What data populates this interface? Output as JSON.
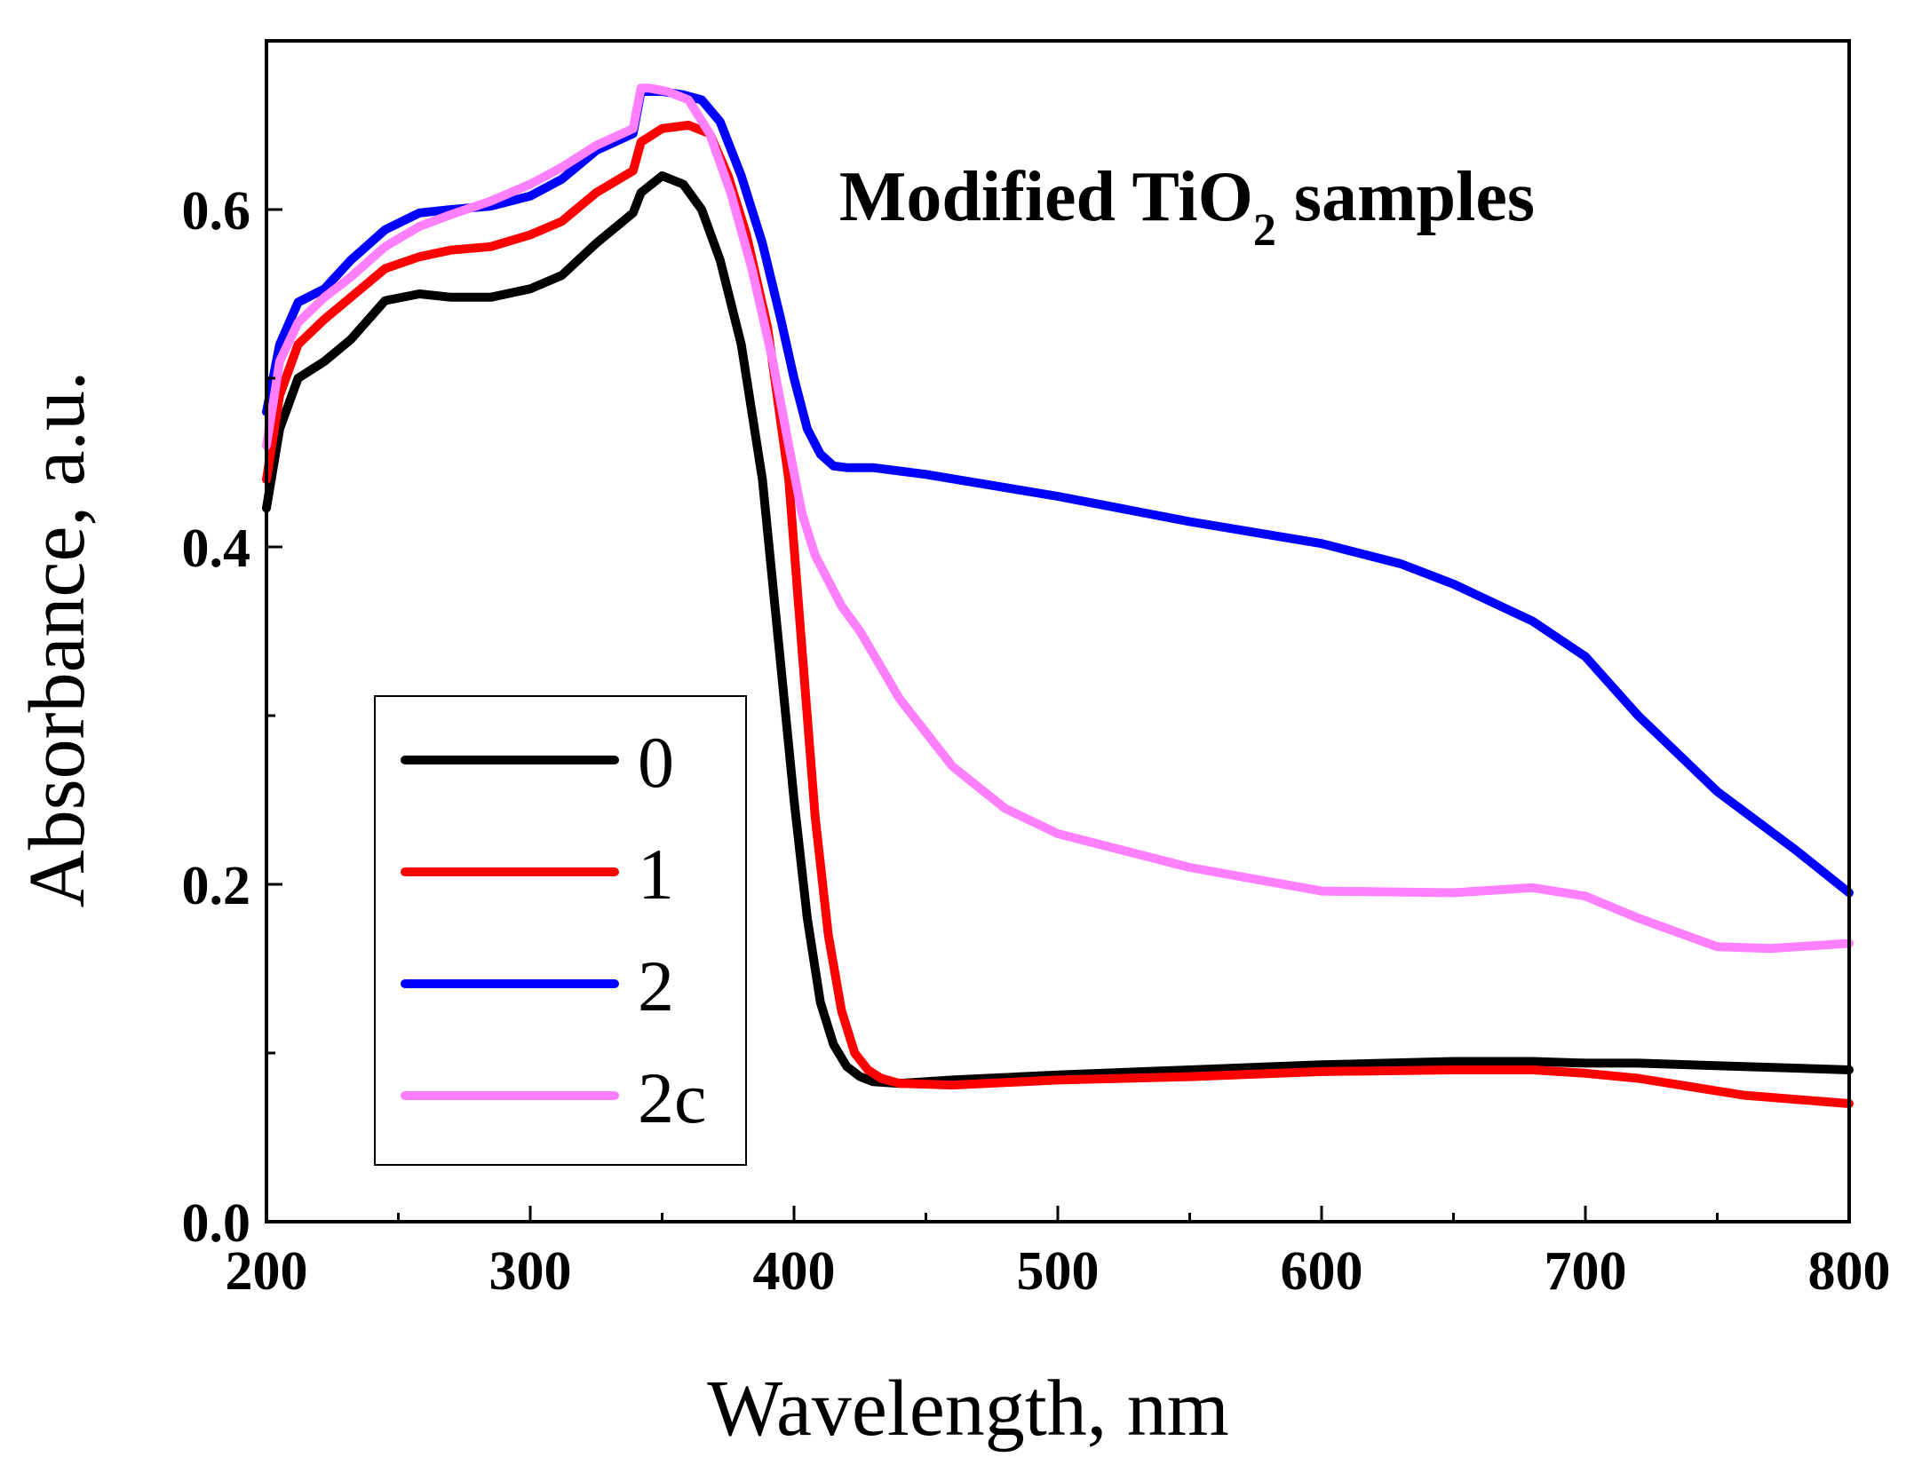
{
  "chart_data": {
    "type": "line",
    "title": "",
    "annotation": {
      "main": "Modified TiO",
      "sub": "2",
      "tail": " samples"
    },
    "xlabel": "Wavelength, nm",
    "ylabel": "Absorbance, a.u.",
    "xlim": [
      200,
      800
    ],
    "ylim": [
      0,
      0.7
    ],
    "xticks": [
      200,
      300,
      400,
      500,
      600,
      700,
      800
    ],
    "xtick_labels": [
      "200",
      "300",
      "400",
      "500",
      "600",
      "700",
      "800"
    ],
    "yticks": [
      0.0,
      0.2,
      0.4,
      0.6
    ],
    "ytick_labels": [
      "0.0",
      "0.2",
      "0.4",
      "0.6"
    ],
    "grid": false,
    "legend_position": "bottom-left",
    "series": [
      {
        "name": "0",
        "color": "#000000",
        "x": [
          200,
          205,
          212,
          222,
          232,
          245,
          258,
          270,
          285,
          300,
          312,
          325,
          339,
          342,
          350,
          358,
          365,
          372,
          380,
          388,
          395,
          400,
          405,
          410,
          415,
          420,
          425,
          430,
          440,
          460,
          500,
          550,
          600,
          650,
          680,
          700,
          720,
          760,
          800
        ],
        "y": [
          0.423,
          0.47,
          0.5,
          0.51,
          0.523,
          0.546,
          0.55,
          0.548,
          0.548,
          0.553,
          0.561,
          0.58,
          0.598,
          0.61,
          0.62,
          0.615,
          0.6,
          0.57,
          0.52,
          0.44,
          0.33,
          0.25,
          0.18,
          0.13,
          0.105,
          0.092,
          0.086,
          0.083,
          0.082,
          0.084,
          0.087,
          0.09,
          0.093,
          0.095,
          0.095,
          0.094,
          0.094,
          0.092,
          0.09
        ]
      },
      {
        "name": "1",
        "color": "#ff0000",
        "x": [
          200,
          205,
          212,
          222,
          232,
          245,
          258,
          270,
          285,
          300,
          312,
          325,
          339,
          342,
          350,
          360,
          368,
          375,
          382,
          390,
          398,
          403,
          408,
          413,
          418,
          423,
          428,
          433,
          440,
          460,
          500,
          550,
          600,
          650,
          680,
          700,
          720,
          760,
          800
        ],
        "y": [
          0.44,
          0.49,
          0.52,
          0.535,
          0.548,
          0.565,
          0.572,
          0.576,
          0.578,
          0.585,
          0.593,
          0.61,
          0.623,
          0.64,
          0.648,
          0.65,
          0.645,
          0.62,
          0.585,
          0.53,
          0.44,
          0.34,
          0.24,
          0.17,
          0.125,
          0.1,
          0.09,
          0.085,
          0.082,
          0.081,
          0.084,
          0.086,
          0.089,
          0.09,
          0.09,
          0.088,
          0.085,
          0.075,
          0.07
        ]
      },
      {
        "name": "2",
        "color": "#0000ff",
        "x": [
          200,
          205,
          212,
          222,
          232,
          245,
          258,
          270,
          285,
          300,
          312,
          325,
          339,
          342,
          350,
          358,
          365,
          372,
          380,
          388,
          395,
          400,
          405,
          410,
          415,
          420,
          430,
          450,
          500,
          550,
          600,
          630,
          650,
          680,
          700,
          720,
          750,
          780,
          800
        ],
        "y": [
          0.48,
          0.52,
          0.545,
          0.553,
          0.57,
          0.588,
          0.598,
          0.6,
          0.602,
          0.608,
          0.618,
          0.635,
          0.645,
          0.67,
          0.67,
          0.668,
          0.665,
          0.652,
          0.62,
          0.58,
          0.535,
          0.5,
          0.47,
          0.455,
          0.448,
          0.447,
          0.447,
          0.443,
          0.43,
          0.415,
          0.402,
          0.39,
          0.378,
          0.356,
          0.335,
          0.3,
          0.255,
          0.22,
          0.195
        ]
      },
      {
        "name": "2c",
        "color": "#ff80ff",
        "x": [
          200,
          205,
          212,
          222,
          232,
          245,
          258,
          270,
          285,
          300,
          312,
          325,
          339,
          342,
          345,
          352,
          360,
          368,
          376,
          384,
          392,
          398,
          403,
          408,
          413,
          418,
          425,
          440,
          460,
          480,
          500,
          550,
          600,
          650,
          680,
          700,
          720,
          750,
          770,
          800
        ],
        "y": [
          0.46,
          0.51,
          0.533,
          0.548,
          0.56,
          0.578,
          0.59,
          0.597,
          0.605,
          0.615,
          0.625,
          0.638,
          0.648,
          0.672,
          0.672,
          0.67,
          0.665,
          0.645,
          0.61,
          0.565,
          0.51,
          0.46,
          0.42,
          0.395,
          0.38,
          0.365,
          0.35,
          0.31,
          0.27,
          0.245,
          0.23,
          0.21,
          0.196,
          0.195,
          0.198,
          0.193,
          0.18,
          0.163,
          0.162,
          0.165
        ]
      }
    ]
  }
}
